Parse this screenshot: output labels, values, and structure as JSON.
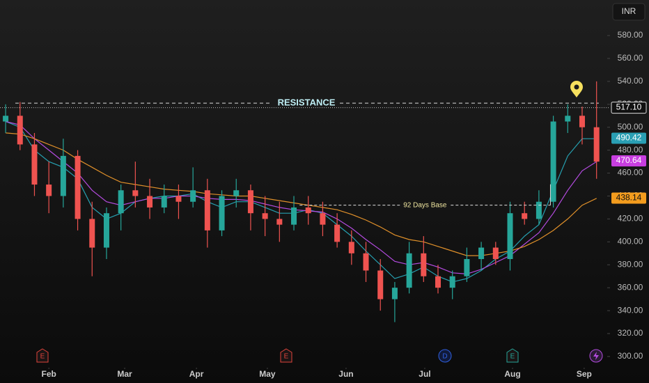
{
  "chart_data": {
    "type": "candlestick",
    "currency": "INR",
    "x": [
      0,
      1,
      2,
      3,
      4,
      5,
      6,
      7,
      8,
      9,
      10,
      11,
      12,
      13,
      14,
      15,
      16,
      17,
      18,
      19,
      20,
      21,
      22,
      23,
      24,
      25,
      26,
      27,
      28,
      29,
      30,
      31,
      32,
      33,
      34,
      35,
      36,
      37,
      38,
      39,
      40,
      41
    ],
    "open": [
      505,
      510,
      485,
      450,
      440,
      475,
      420,
      395,
      425,
      445,
      440,
      430,
      440,
      435,
      445,
      410,
      440,
      445,
      425,
      420,
      415,
      430,
      425,
      415,
      400,
      390,
      375,
      350,
      360,
      390,
      370,
      360,
      370,
      385,
      395,
      385,
      425,
      420,
      435,
      505,
      510,
      500
    ],
    "high": [
      520,
      522,
      495,
      470,
      490,
      480,
      435,
      430,
      450,
      470,
      455,
      450,
      450,
      465,
      455,
      445,
      455,
      450,
      440,
      435,
      440,
      440,
      435,
      425,
      410,
      400,
      385,
      365,
      400,
      405,
      380,
      375,
      395,
      400,
      400,
      435,
      435,
      445,
      510,
      520,
      518,
      540
    ],
    "low": [
      495,
      480,
      440,
      425,
      430,
      410,
      370,
      385,
      410,
      430,
      420,
      425,
      420,
      430,
      395,
      405,
      430,
      410,
      405,
      400,
      410,
      415,
      405,
      395,
      380,
      365,
      340,
      330,
      355,
      365,
      355,
      350,
      365,
      375,
      380,
      375,
      415,
      415,
      430,
      495,
      485,
      455
    ],
    "close": [
      510,
      485,
      450,
      440,
      475,
      420,
      395,
      425,
      445,
      440,
      430,
      440,
      435,
      445,
      410,
      440,
      445,
      425,
      420,
      415,
      430,
      425,
      415,
      400,
      390,
      375,
      350,
      360,
      390,
      370,
      360,
      370,
      385,
      395,
      385,
      425,
      420,
      435,
      505,
      510,
      500,
      470
    ],
    "up_color": "#26a69a",
    "down_color": "#ef5350",
    "lines": [
      {
        "color": "#26a0b0",
        "values": [
          505,
          500,
          480,
          470,
          465,
          455,
          430,
          420,
          425,
          435,
          438,
          440,
          440,
          442,
          435,
          430,
          435,
          435,
          430,
          425,
          425,
          428,
          425,
          415,
          405,
          392,
          380,
          368,
          372,
          378,
          370,
          365,
          368,
          375,
          385,
          392,
          405,
          415,
          445,
          475,
          490,
          490
        ]
      },
      {
        "color": "#b44be0",
        "values": [
          505,
          502,
          490,
          480,
          470,
          460,
          445,
          435,
          432,
          435,
          438,
          438,
          440,
          440,
          438,
          437,
          437,
          436,
          433,
          430,
          428,
          427,
          426,
          420,
          412,
          402,
          393,
          383,
          380,
          382,
          378,
          373,
          372,
          376,
          382,
          388,
          398,
          408,
          425,
          445,
          462,
          470
        ]
      },
      {
        "color": "#e0902a",
        "values": [
          495,
          494,
          490,
          485,
          480,
          472,
          465,
          458,
          452,
          450,
          448,
          446,
          445,
          444,
          442,
          441,
          440,
          440,
          438,
          436,
          434,
          432,
          430,
          428,
          424,
          419,
          413,
          406,
          402,
          400,
          396,
          392,
          388,
          388,
          390,
          392,
          396,
          402,
          410,
          420,
          432,
          438
        ]
      }
    ],
    "xlim": [
      -0.39,
      41.45
    ],
    "xticks": [
      {
        "value": 3.0,
        "label": "Feb"
      },
      {
        "value": 8.26,
        "label": "Mar"
      },
      {
        "value": 13.24,
        "label": "Apr"
      },
      {
        "value": 18.16,
        "label": "May"
      },
      {
        "value": 23.62,
        "label": "Jun"
      },
      {
        "value": 29.08,
        "label": "Jul"
      },
      {
        "value": 35.17,
        "label": "Aug"
      },
      {
        "value": 40.14,
        "label": "Sep"
      }
    ],
    "ylim": [
      295.1,
      611
    ],
    "yticks": [
      {
        "value": 300,
        "label": "300.00"
      },
      {
        "value": 320,
        "label": "320.00"
      },
      {
        "value": 340,
        "label": "340.00"
      },
      {
        "value": 360,
        "label": "360.00"
      },
      {
        "value": 380,
        "label": "380.00"
      },
      {
        "value": 400,
        "label": "400.00"
      },
      {
        "value": 420,
        "label": "420.00"
      },
      {
        "value": 440,
        "label": "440.00"
      },
      {
        "value": 460,
        "label": "460.00"
      },
      {
        "value": 480,
        "label": "480.00"
      },
      {
        "value": 500,
        "label": "500.00"
      },
      {
        "value": 520,
        "label": "520.00"
      },
      {
        "value": 540,
        "label": "540.00"
      },
      {
        "value": 560,
        "label": "560.00"
      },
      {
        "value": 580,
        "label": "580.00"
      }
    ],
    "price_tags": [
      {
        "value": 517.1,
        "label": "517.10",
        "color": "#111111"
      },
      {
        "value": 490.42,
        "label": "490.42",
        "color": "#2a9fb4"
      },
      {
        "value": 470.64,
        "label": "470.64",
        "color": "#c83ee0"
      },
      {
        "value": 438.14,
        "label": "438.14",
        "color": "#f39c1e"
      }
    ],
    "resistance": {
      "text": "RESISTANCE",
      "value": 521
    },
    "base": {
      "text": "92 Days Base",
      "value": 432,
      "x_start": 20.4,
      "x_end": 37.8
    },
    "events": [
      {
        "label": "E",
        "color": "#e0443c"
      },
      {
        "label": "E",
        "color": "#e0443c"
      },
      {
        "label": "D",
        "color": "#3060e0"
      },
      {
        "label": "E",
        "color": "#26a69a"
      }
    ]
  }
}
